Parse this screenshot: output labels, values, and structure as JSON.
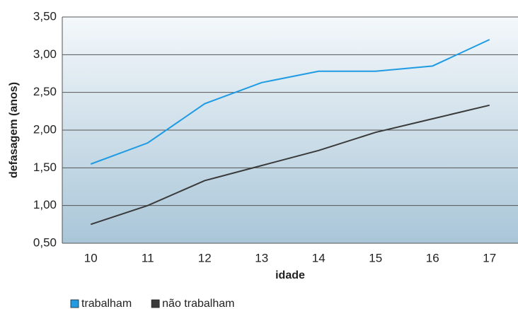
{
  "chart_data": {
    "type": "line",
    "y_label": "defasagem (anos)",
    "x_label": "idade",
    "categories": [
      "10",
      "11",
      "12",
      "13",
      "14",
      "15",
      "16",
      "17"
    ],
    "series": [
      {
        "name": "trabalham",
        "color": "#1e9be3",
        "values": [
          1.55,
          1.83,
          2.35,
          2.63,
          2.78,
          2.78,
          2.85,
          3.2
        ]
      },
      {
        "name": "não trabalham",
        "color": "#3a3a3a",
        "values": [
          0.75,
          1.0,
          1.33,
          1.53,
          1.73,
          1.97,
          2.15,
          2.33
        ]
      }
    ],
    "ylim": [
      0.5,
      3.5
    ],
    "yticks": [
      {
        "value": 0.5,
        "label": "0,50"
      },
      {
        "value": 1,
        "label": "1,00"
      },
      {
        "value": 1.5,
        "label": "1,50"
      },
      {
        "value": 2,
        "label": "2,00"
      },
      {
        "value": 2.5,
        "label": "2,50"
      },
      {
        "value": 3,
        "label": "3,00"
      },
      {
        "value": 3.5,
        "label": "3,50"
      }
    ],
    "grid": true
  }
}
